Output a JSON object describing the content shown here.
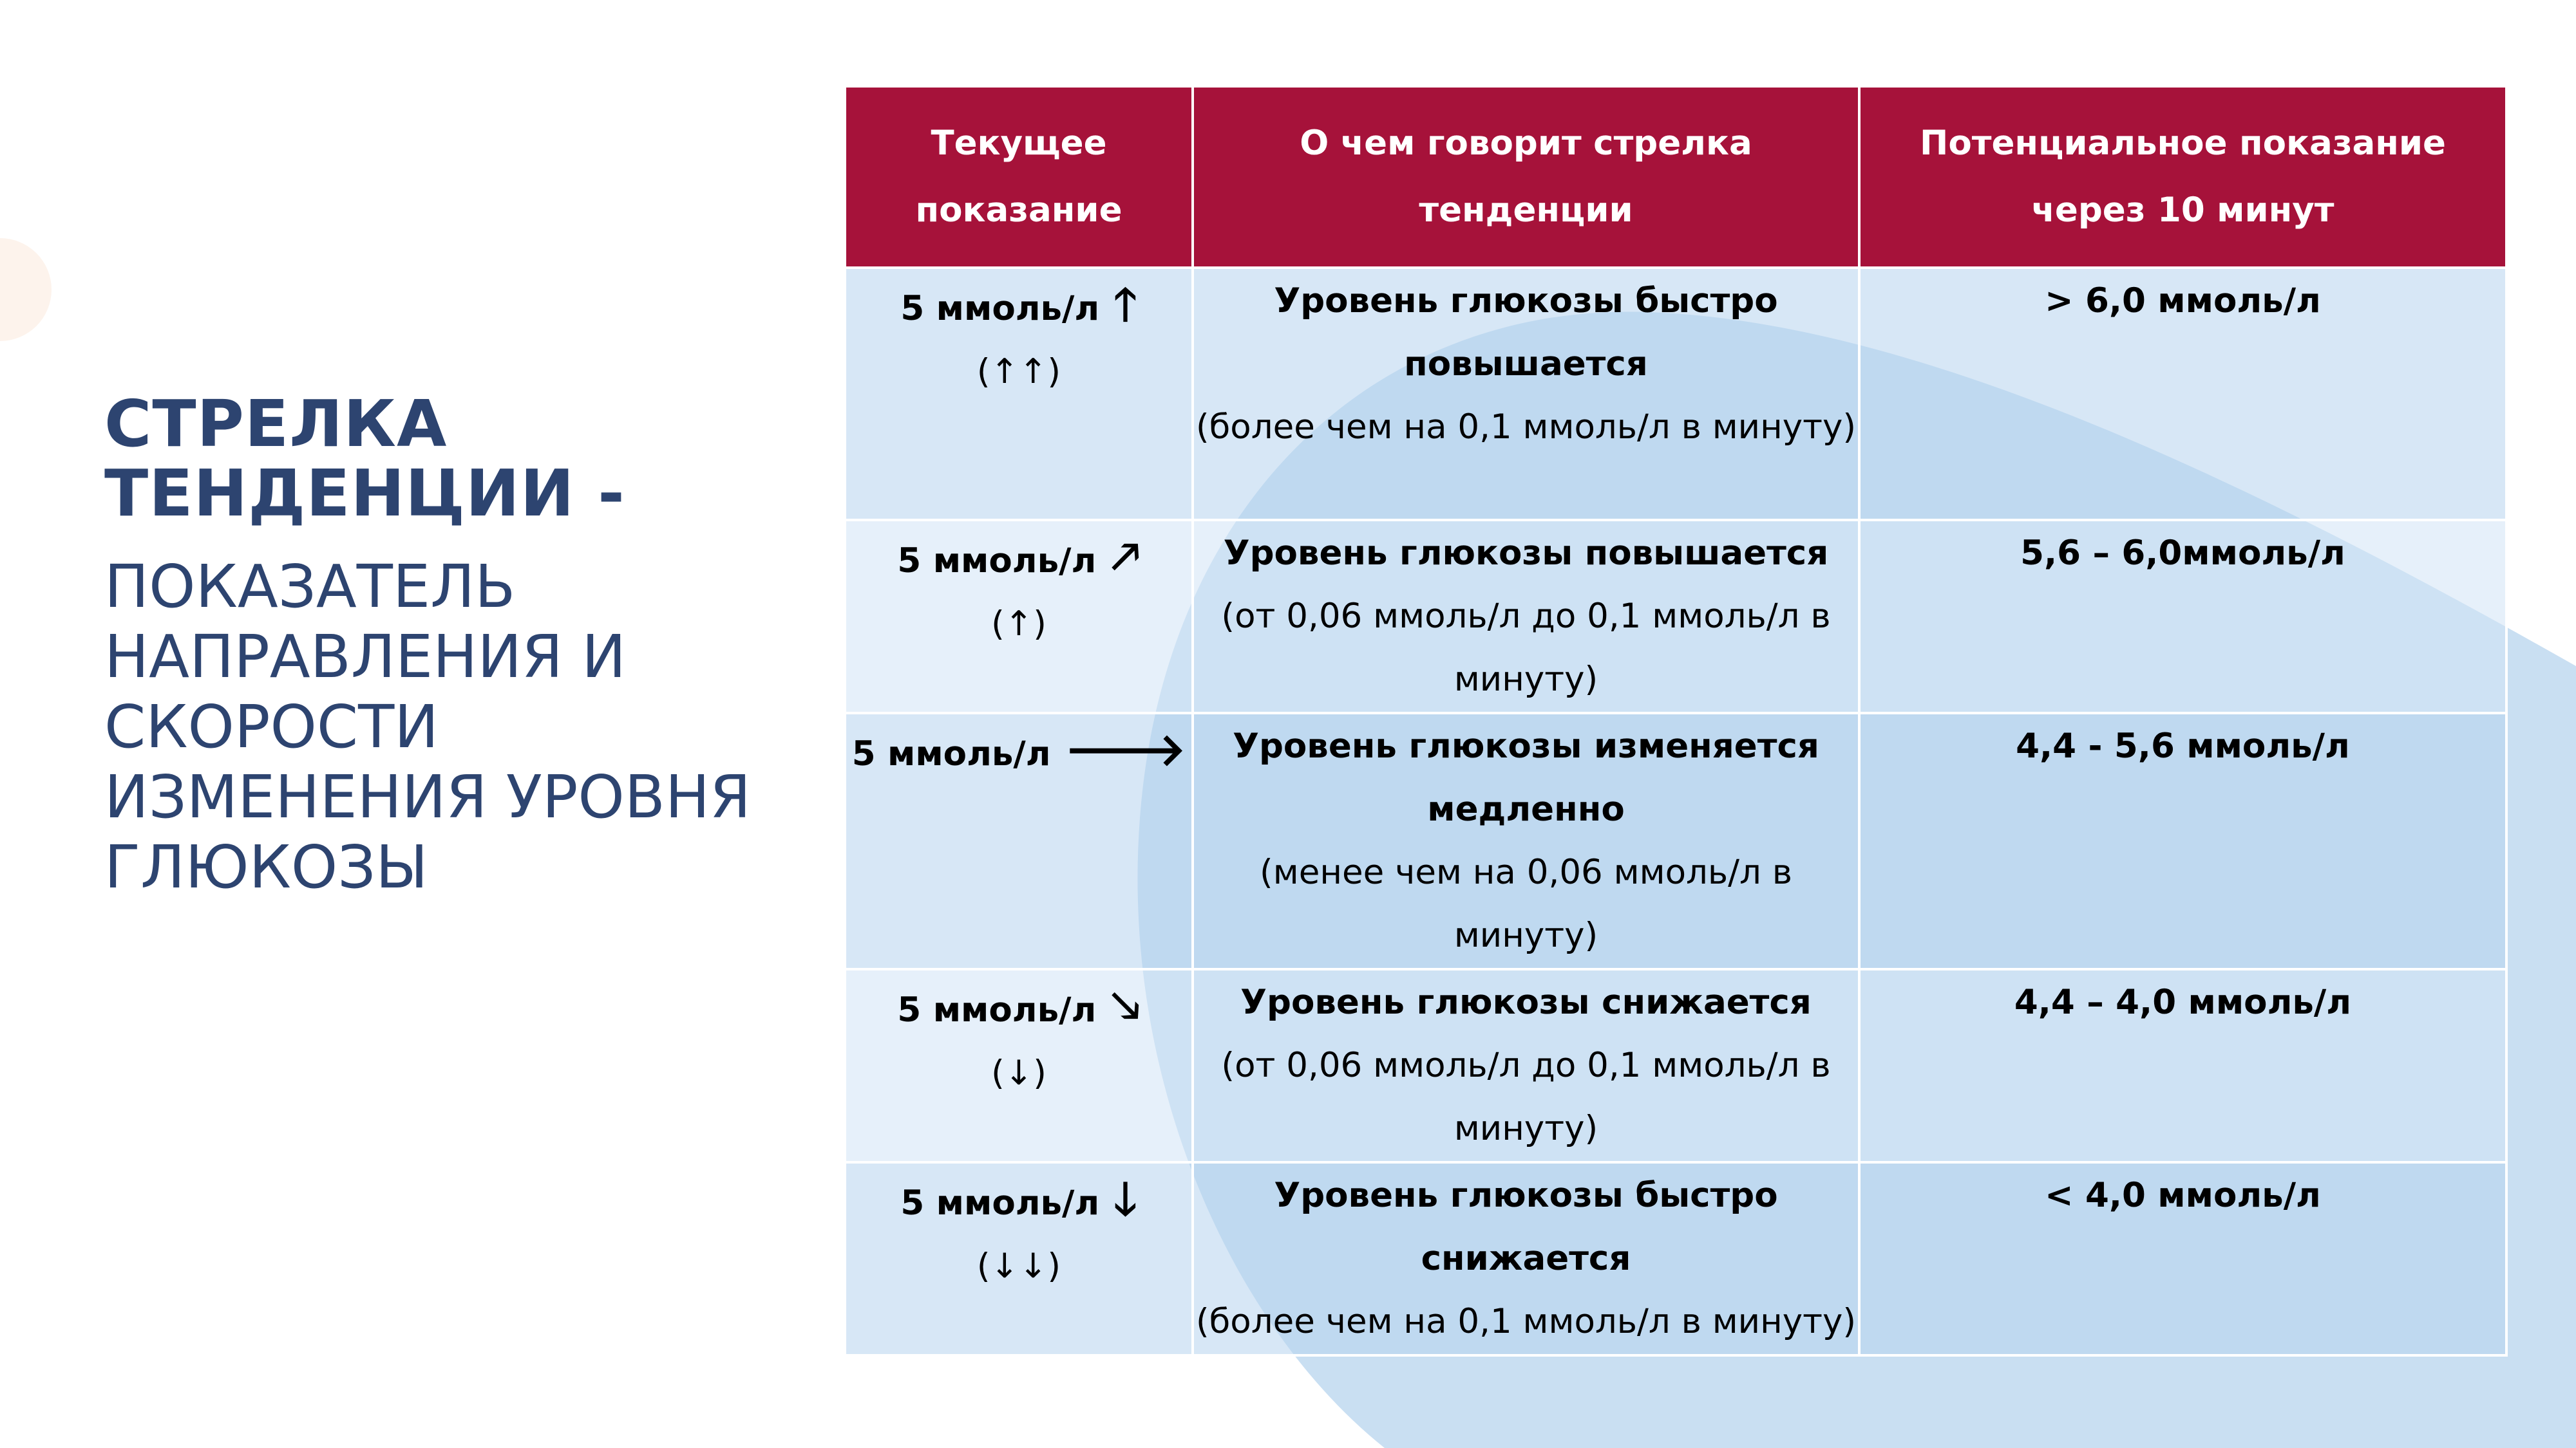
{
  "title": {
    "bold": "СТРЕЛКА ТЕНДЕНЦИИ -",
    "light": "ПОКАЗАТЕЛЬ НАПРАВЛЕНИЯ И СКОРОСТИ ИЗМЕНЕНИЯ УРОВНЯ ГЛЮКОЗЫ"
  },
  "table": {
    "headers": [
      "Текущее показание",
      "О чем говорит стрелка тенденции",
      "Потенциальное показание через 10 минут"
    ],
    "rows": [
      {
        "reading": "5 ммоль/л",
        "arrow_icon": "arrow-up-icon",
        "arrow_glyph": "🡑",
        "symbol": "(↑↑)",
        "meaning_bold": "Уровень глюкозы быстро повышается",
        "meaning_text": "(более чем на 0,1 ммоль/л в минуту)",
        "potential": "> 6,0 ммоль/л"
      },
      {
        "reading": "5 ммоль/л",
        "arrow_icon": "arrow-up-right-icon",
        "arrow_glyph": "🡕",
        "symbol": "(↑)",
        "meaning_bold": "Уровень глюкозы повышается",
        "meaning_text": "(от 0,06 ммоль/л до 0,1 ммоль/л в минуту)",
        "potential": "5,6 – 6,0ммоль/л"
      },
      {
        "reading": "5 ммоль/л",
        "arrow_icon": "arrow-right-icon",
        "arrow_glyph": "🡒",
        "symbol": "",
        "meaning_bold": "Уровень глюкозы изменяется медленно",
        "meaning_text": "(менее чем на 0,06 ммоль/л в минуту)",
        "potential": "4,4 - 5,6 ммоль/л"
      },
      {
        "reading": "5 ммоль/л",
        "arrow_icon": "arrow-down-right-icon",
        "arrow_glyph": "🡖",
        "symbol": "(↓)",
        "meaning_bold": "Уровень глюкозы снижается",
        "meaning_text": "(от 0,06 ммоль/л до 0,1 ммоль/л в минуту)",
        "potential": "4,4 – 4,0 ммоль/л"
      },
      {
        "reading": "5 ммоль/л",
        "arrow_icon": "arrow-down-icon",
        "arrow_glyph": "🡓",
        "symbol": "(↓↓)",
        "meaning_bold": "Уровень глюкозы быстро снижается",
        "meaning_text": "(более чем на 0,1 ммоль/л в минуту)",
        "potential": "< 4,0 ммоль/л"
      }
    ]
  },
  "colors": {
    "header_bg": "#a6123a",
    "title": "#2d4470",
    "row_dark": "#b7d4ee",
    "row_light": "#d1e4f5",
    "background_shape": "#bfd9f0"
  }
}
